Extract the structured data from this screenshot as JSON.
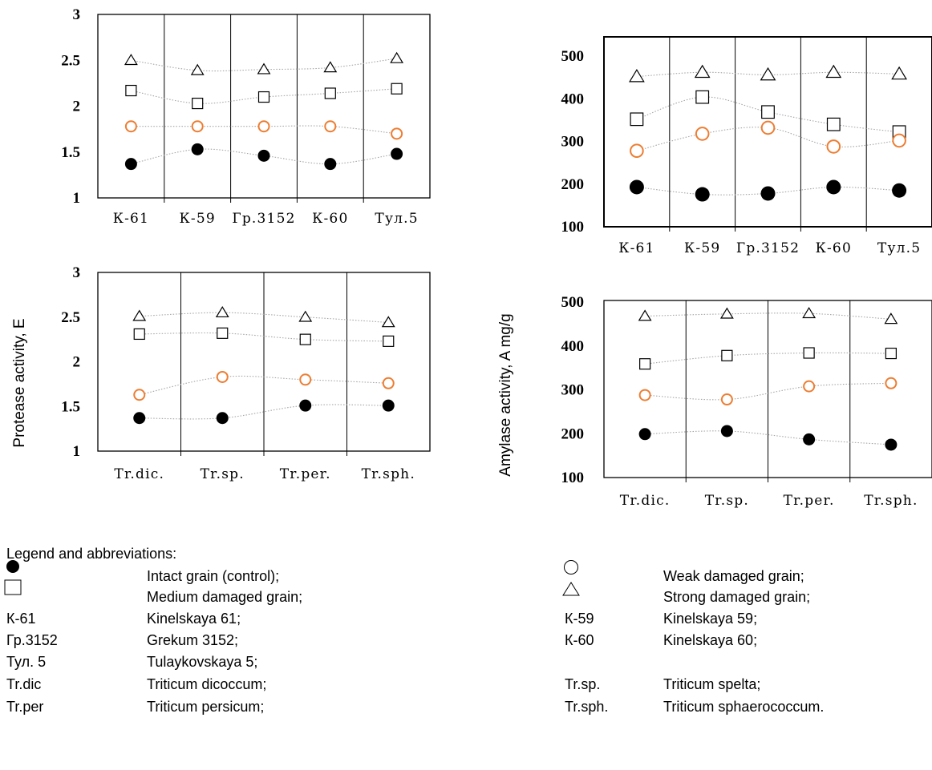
{
  "chart_data": [
    {
      "id": "protease-varieties",
      "type": "scatter",
      "categories": [
        "К-61",
        "К-59",
        "Гр.3152",
        "К-60",
        "Тул.5"
      ],
      "yticks": [
        "1",
        "1.5",
        "2",
        "2.5",
        "3"
      ],
      "ylim": [
        1,
        3
      ],
      "ylabel": "",
      "series": [
        {
          "key": "intact",
          "values": [
            1.37,
            1.53,
            1.46,
            1.37,
            1.48
          ]
        },
        {
          "key": "weak",
          "values": [
            1.78,
            1.78,
            1.78,
            1.78,
            1.7
          ]
        },
        {
          "key": "medium",
          "values": [
            2.17,
            2.03,
            2.1,
            2.14,
            2.19
          ]
        },
        {
          "key": "strong",
          "values": [
            2.5,
            2.39,
            2.4,
            2.42,
            2.52
          ]
        }
      ]
    },
    {
      "id": "amylase-varieties",
      "type": "scatter",
      "categories": [
        "К-61",
        "К-59",
        "Гр.3152",
        "К-60",
        "Тул.5"
      ],
      "yticks": [
        "100",
        "200",
        "300",
        "400",
        "500"
      ],
      "ylim": [
        100,
        550
      ],
      "ylabel": "",
      "series": [
        {
          "key": "intact",
          "values": [
            193,
            176,
            178,
            193,
            185
          ]
        },
        {
          "key": "weak",
          "values": [
            278,
            318,
            332,
            288,
            302
          ]
        },
        {
          "key": "medium",
          "values": [
            352,
            404,
            369,
            340,
            322
          ]
        },
        {
          "key": "strong",
          "values": [
            452,
            462,
            456,
            462,
            458
          ]
        }
      ]
    },
    {
      "id": "protease-species",
      "type": "scatter",
      "categories": [
        "Tr.dic.",
        "Tr.sp.",
        "Tr.per.",
        "Tr.sph."
      ],
      "yticks": [
        "1",
        "1.5",
        "2",
        "2.5",
        "3"
      ],
      "ylim": [
        1,
        3
      ],
      "ylabel": "Protease activity, E",
      "series": [
        {
          "key": "intact",
          "values": [
            1.37,
            1.37,
            1.51,
            1.51
          ]
        },
        {
          "key": "weak",
          "values": [
            1.63,
            1.83,
            1.8,
            1.76
          ]
        },
        {
          "key": "medium",
          "values": [
            2.31,
            2.32,
            2.25,
            2.23
          ]
        },
        {
          "key": "strong",
          "values": [
            2.51,
            2.55,
            2.5,
            2.44
          ]
        }
      ]
    },
    {
      "id": "amylase-species",
      "type": "scatter",
      "categories": [
        "Tr.dic.",
        "Tr.sp.",
        "Tr.per.",
        "Tr.sph."
      ],
      "yticks": [
        "100",
        "200",
        "300",
        "400",
        "500"
      ],
      "ylim": [
        100,
        500
      ],
      "ylabel": "Amylase activity, A mg/g",
      "series": [
        {
          "key": "intact",
          "values": [
            199,
            206,
            187,
            175
          ]
        },
        {
          "key": "weak",
          "values": [
            288,
            278,
            308,
            315
          ]
        },
        {
          "key": "medium",
          "values": [
            359,
            378,
            384,
            383
          ]
        },
        {
          "key": "strong",
          "values": [
            468,
            473,
            474,
            461
          ]
        }
      ]
    }
  ],
  "marker_colors": {
    "intact": "#000000",
    "weak": "#ed7d31",
    "medium": "#000000",
    "strong": "#000000",
    "connector": "#a6a6a6"
  },
  "legend": {
    "title": "Legend and abbreviations:",
    "rows": [
      {
        "left_key": "intact",
        "left_text": "Intact grain (control);",
        "right_key": "weak",
        "right_text": "Weak damaged grain;"
      },
      {
        "left_key": "medium",
        "left_text": "Medium damaged grain;",
        "right_key": "strong",
        "right_text": "Strong damaged grain;"
      },
      {
        "left_abbr": "К-61",
        "left_text": "Kinelskaya 61;",
        "right_abbr": "К-59",
        "right_text": "Kinelskaya 59;"
      },
      {
        "left_abbr": "Гр.3152",
        "left_text": "Grekum 3152;",
        "right_abbr": "К-60",
        "right_text": "Kinelskaya 60;"
      },
      {
        "left_abbr": "Тул. 5",
        "left_text": "Tulaykovskaya 5;",
        "right_abbr": "",
        "right_text": ""
      },
      {
        "left_abbr": "Tr.dic",
        "left_text": "Triticum dicoccum;",
        "right_abbr": "Tr.sp.",
        "right_text": "Triticum spelta;"
      },
      {
        "left_abbr": "Tr.per",
        "left_text": "Triticum persicum;",
        "right_abbr": "Tr.sph.",
        "right_text": "Triticum sphaerococcum."
      }
    ]
  }
}
